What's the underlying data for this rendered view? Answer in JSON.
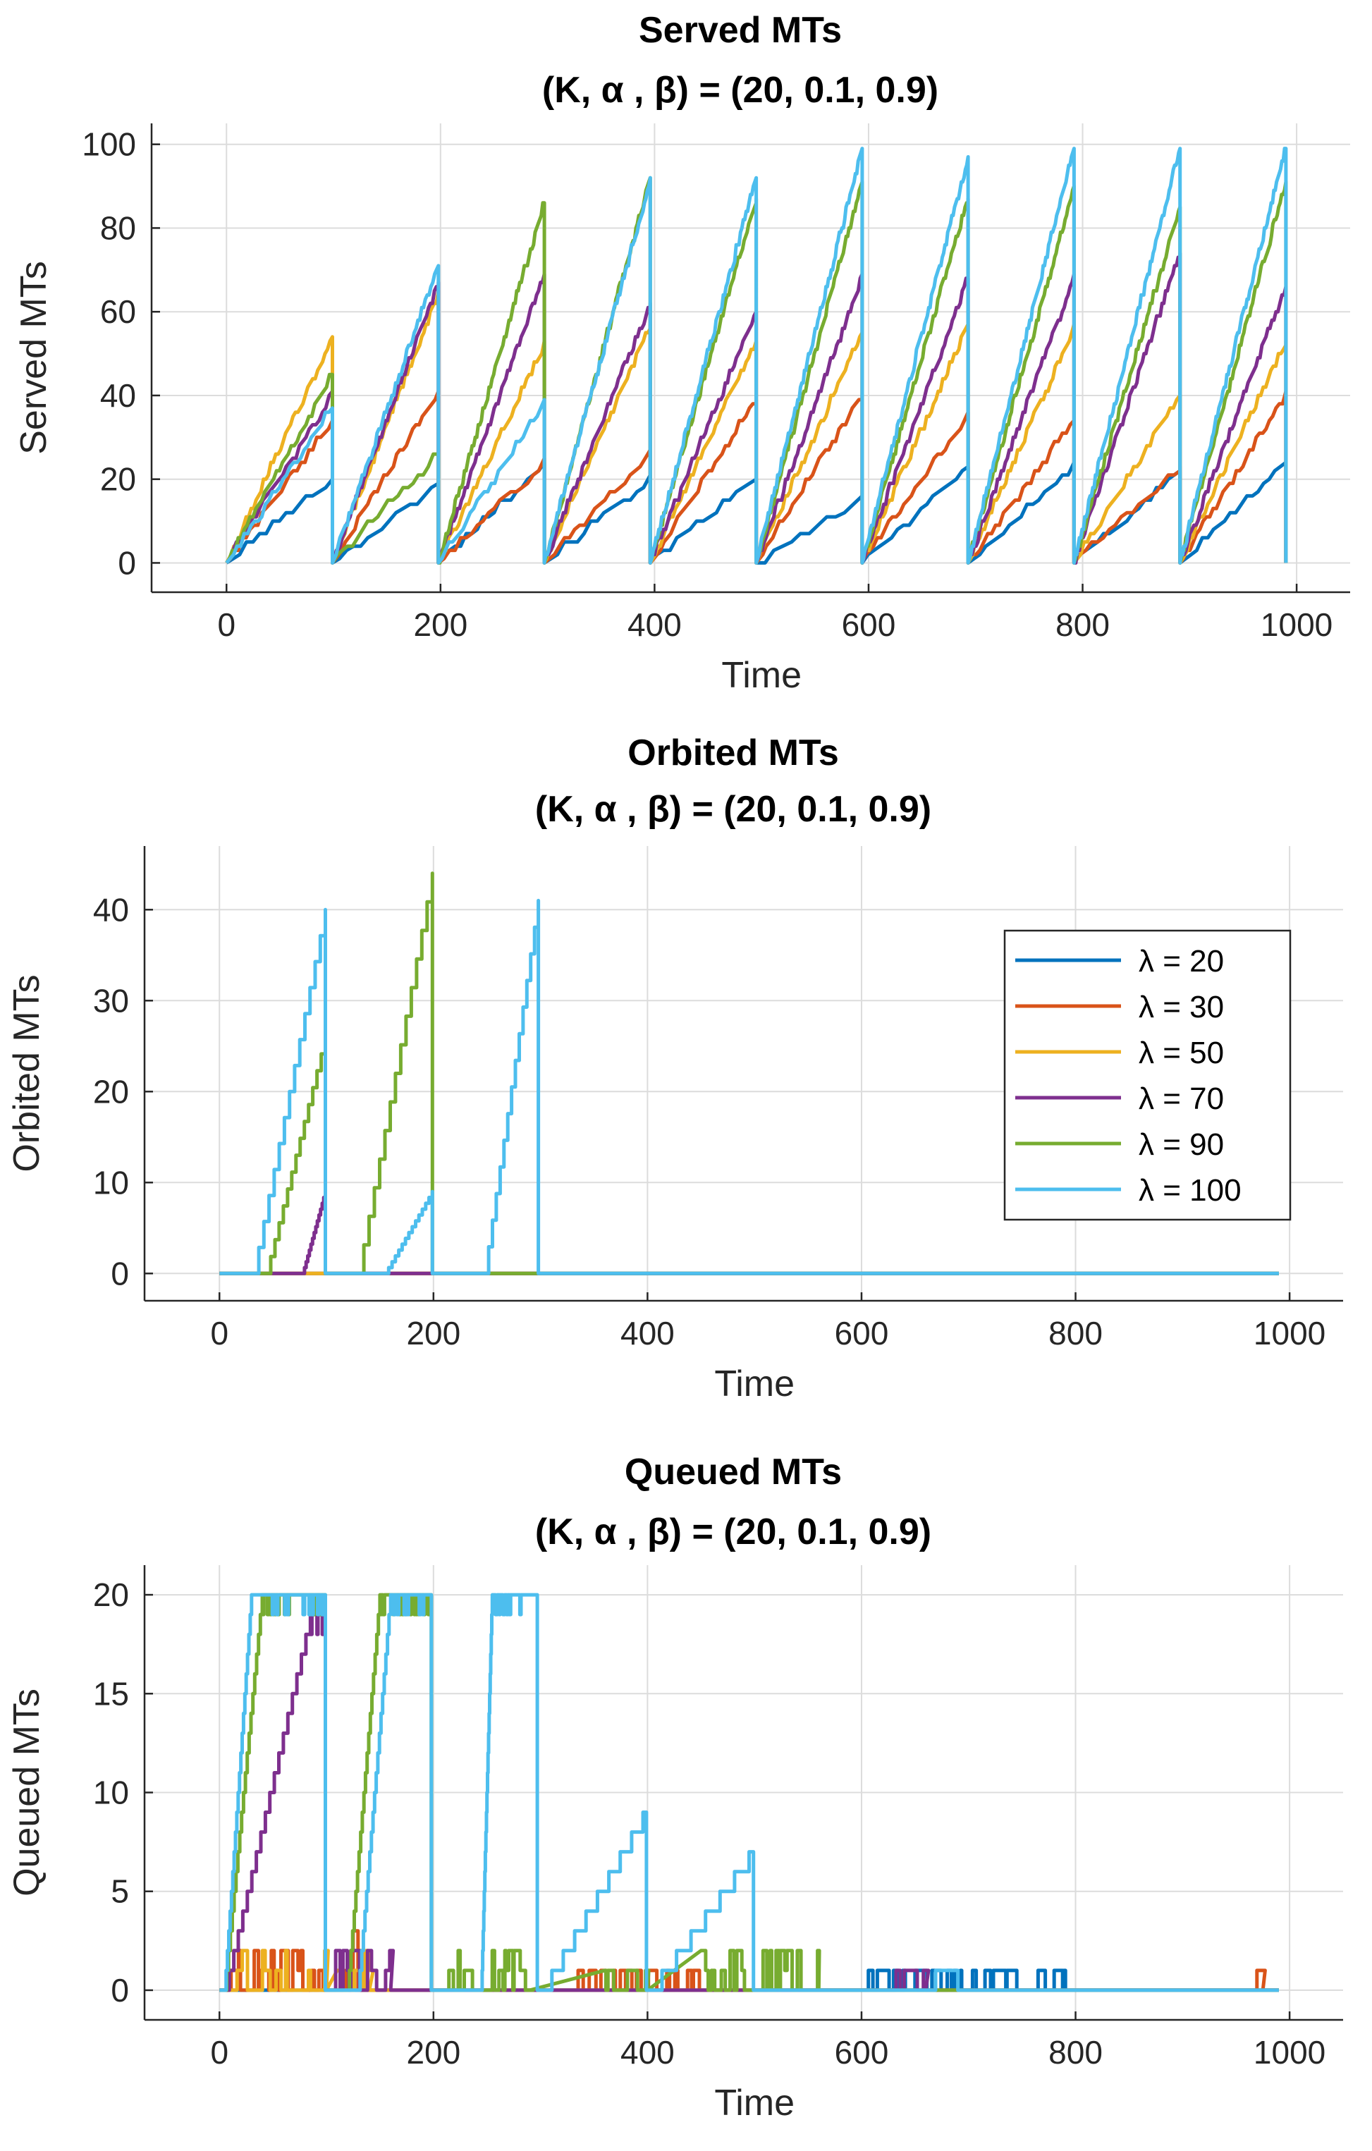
{
  "colors": [
    "#0072BD",
    "#D95319",
    "#EDB120",
    "#7E2F8E",
    "#77AC30",
    "#4DBEEE"
  ],
  "legend_labels": [
    "λ = 20",
    "λ = 30",
    "λ = 50",
    "λ = 70",
    "λ = 90",
    "λ = 100"
  ],
  "chart_data": [
    {
      "type": "line",
      "title_line1": "Served MTs",
      "title_line2": "(K, α , β) =  (20, 0.1, 0.9)",
      "xlabel": "Time",
      "ylabel": "Served MTs",
      "xlim": [
        -70,
        1050
      ],
      "ylim": [
        -7,
        105
      ],
      "xticks": [
        0,
        200,
        400,
        600,
        800,
        1000
      ],
      "yticks": [
        0,
        20,
        40,
        60,
        80,
        100
      ],
      "grid": true,
      "legend": "none",
      "cycle_period": 99,
      "series": [
        {
          "name": "λ = 20",
          "cycle_peaks": [
            20,
            19,
            24,
            20,
            20,
            15,
            23,
            23,
            22,
            24
          ]
        },
        {
          "name": "λ = 30",
          "cycle_peaks": [
            34,
            41,
            24,
            26,
            39,
            40,
            35,
            34,
            23,
            40
          ]
        },
        {
          "name": "λ = 50",
          "cycle_peaks": [
            54,
            64,
            52,
            57,
            53,
            55,
            57,
            56,
            40,
            53
          ]
        },
        {
          "name": "λ = 70",
          "cycle_peaks": [
            40,
            67,
            69,
            62,
            60,
            68,
            68,
            68,
            74,
            66
          ]
        },
        {
          "name": "λ = 90",
          "cycle_peaks": [
            45,
            26,
            86,
            92,
            87,
            91,
            87,
            89,
            85,
            91
          ]
        },
        {
          "name": "λ = 100",
          "cycle_peaks": [
            37,
            71,
            38,
            91,
            92,
            99,
            97,
            99,
            99,
            99
          ]
        }
      ]
    },
    {
      "type": "line",
      "title_line1": "Orbited MTs",
      "title_line2": "(K, α , β) =  (20, 0.1, 0.9)",
      "xlabel": "Time",
      "ylabel": "Orbited MTs",
      "xlim": [
        -70,
        1050
      ],
      "ylim": [
        -3,
        47
      ],
      "xticks": [
        0,
        200,
        400,
        600,
        800,
        1000
      ],
      "yticks": [
        0,
        10,
        20,
        30,
        40
      ],
      "grid": true,
      "legend": "right",
      "series": [
        {
          "name": "λ = 20",
          "ramps": []
        },
        {
          "name": "λ = 30",
          "ramps": []
        },
        {
          "name": "λ = 50",
          "ramps": []
        },
        {
          "name": "λ = 70",
          "ramps": [
            [
              78,
              99,
              9
            ]
          ]
        },
        {
          "name": "λ = 90",
          "ramps": [
            [
              44,
              99,
              26
            ],
            [
              130,
              199,
              44
            ]
          ]
        },
        {
          "name": "λ = 100",
          "ramps": [
            [
              32,
              99,
              40
            ],
            [
              155,
              199,
              9
            ],
            [
              248,
              298,
              41
            ]
          ]
        }
      ]
    },
    {
      "type": "line",
      "title_line1": "Queued MTs",
      "title_line2": "(K, α , β) =  (20, 0.1, 0.9)",
      "xlabel": "Time",
      "ylabel": "Queued MTs",
      "xlim": [
        -70,
        1050
      ],
      "ylim": [
        -1.5,
        21.5
      ],
      "xticks": [
        0,
        200,
        400,
        600,
        800,
        1000
      ],
      "yticks": [
        0,
        5,
        10,
        15,
        20
      ],
      "grid": true,
      "legend": "none",
      "series": [
        {
          "name": "λ = 20",
          "blips": [
            [
              600,
              800,
              1
            ]
          ]
        },
        {
          "name": "λ = 30",
          "blips": [
            [
              5,
              100,
              2
            ],
            [
              100,
              130,
              3
            ],
            [
              330,
              460,
              1
            ],
            [
              965,
              975,
              1
            ]
          ]
        },
        {
          "name": "λ = 50",
          "blips": [
            [
              5,
              100,
              2
            ],
            [
              110,
              140,
              2
            ]
          ]
        },
        {
          "name": "λ = 70",
          "blips": [
            [
              105,
              160,
              2
            ],
            [
              630,
              660,
              1
            ]
          ],
          "ramps": [
            [
              5,
              85,
              19
            ]
          ]
        },
        {
          "name": "λ = 90",
          "blips": [
            [
              210,
              290,
              2
            ],
            [
              360,
              400,
              1
            ],
            [
              450,
              560,
              2
            ]
          ],
          "ramps": [
            [
              5,
              40,
              20
            ],
            [
              120,
              150,
              20
            ]
          ]
        },
        {
          "name": "λ = 100",
          "steps": [
            [
              300,
              399,
              9
            ],
            [
              400,
              499,
              7
            ],
            [
              600,
              690,
              1
            ]
          ],
          "ramps": [
            [
              5,
              30,
              20
            ],
            [
              130,
              160,
              20
            ],
            [
              245,
              255,
              20
            ]
          ]
        }
      ]
    }
  ]
}
